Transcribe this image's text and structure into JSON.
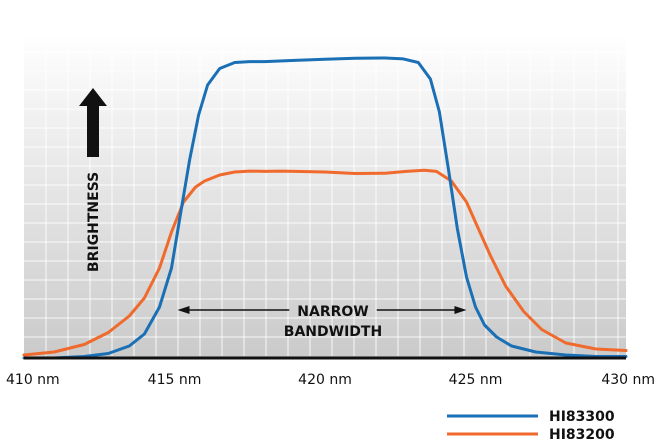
{
  "chart_data": {
    "type": "line",
    "title": "",
    "xlabel": "",
    "ylabel": "BRIGHTNESS",
    "xlim": [
      410,
      430
    ],
    "ylim": [
      0,
      100
    ],
    "x_ticks": [
      {
        "value": 410,
        "label": "410 nm"
      },
      {
        "value": 415,
        "label": "415 nm"
      },
      {
        "value": 420,
        "label": "420 nm"
      },
      {
        "value": 425,
        "label": "425 nm"
      },
      {
        "value": 430,
        "label": "430 nm"
      }
    ],
    "grid": true,
    "legend_position": "bottom-right",
    "annotation": {
      "lines": [
        "NARROW",
        "BANDWIDTH"
      ],
      "from": 415.1,
      "to": 424.7
    },
    "series": [
      {
        "name": "HI83300",
        "color": "#1a6fb5",
        "points": [
          [
            410,
            0
          ],
          [
            411,
            0
          ],
          [
            412,
            0.5
          ],
          [
            412.8,
            1.5
          ],
          [
            413.5,
            4
          ],
          [
            414,
            8
          ],
          [
            414.5,
            17
          ],
          [
            414.9,
            30
          ],
          [
            415.2,
            48
          ],
          [
            415.5,
            66
          ],
          [
            415.8,
            81
          ],
          [
            416.1,
            91
          ],
          [
            416.5,
            96.5
          ],
          [
            417,
            98.5
          ],
          [
            417.5,
            98.8
          ],
          [
            418,
            98.8
          ],
          [
            419,
            99.2
          ],
          [
            420,
            99.6
          ],
          [
            421,
            99.9
          ],
          [
            422,
            100
          ],
          [
            422.6,
            99.7
          ],
          [
            423.1,
            98.5
          ],
          [
            423.5,
            93
          ],
          [
            423.8,
            82
          ],
          [
            424.1,
            63
          ],
          [
            424.4,
            43
          ],
          [
            424.7,
            27
          ],
          [
            425,
            17
          ],
          [
            425.3,
            11
          ],
          [
            425.7,
            7
          ],
          [
            426.2,
            4
          ],
          [
            427,
            2
          ],
          [
            428,
            1
          ],
          [
            429,
            0.5
          ],
          [
            430,
            0.5
          ]
        ]
      },
      {
        "name": "HI83200",
        "color": "#ef6a2c",
        "points": [
          [
            410,
            1
          ],
          [
            411,
            2
          ],
          [
            412,
            4.5
          ],
          [
            412.8,
            8.5
          ],
          [
            413.5,
            14
          ],
          [
            414,
            20
          ],
          [
            414.5,
            30
          ],
          [
            414.9,
            42
          ],
          [
            415.3,
            52
          ],
          [
            415.7,
            57
          ],
          [
            416,
            59
          ],
          [
            416.5,
            61
          ],
          [
            417,
            62
          ],
          [
            417.5,
            62.3
          ],
          [
            418,
            62.2
          ],
          [
            418.5,
            62.3
          ],
          [
            419,
            62.2
          ],
          [
            420,
            62
          ],
          [
            421,
            61.5
          ],
          [
            422,
            61.6
          ],
          [
            422.7,
            62.2
          ],
          [
            423.3,
            62.6
          ],
          [
            423.7,
            62.2
          ],
          [
            424.2,
            59
          ],
          [
            424.7,
            52
          ],
          [
            425.1,
            43
          ],
          [
            425.5,
            34
          ],
          [
            426,
            24
          ],
          [
            426.6,
            15.5
          ],
          [
            427.2,
            9.5
          ],
          [
            428,
            5
          ],
          [
            429,
            3
          ],
          [
            430,
            2.5
          ]
        ]
      }
    ]
  }
}
